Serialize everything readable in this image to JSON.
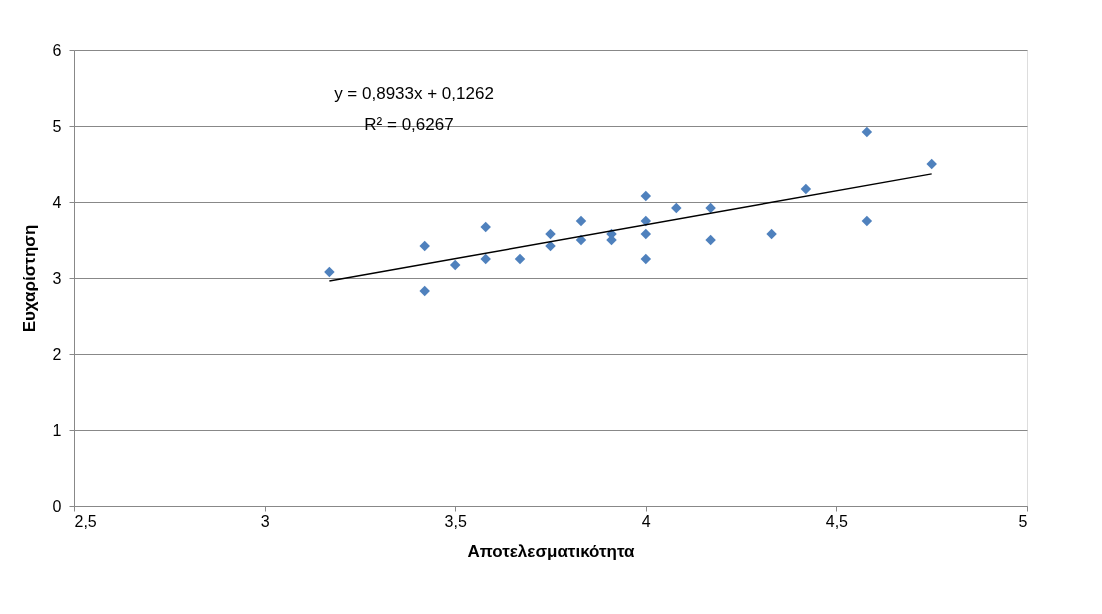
{
  "chart_data": {
    "type": "scatter",
    "xlabel": "Αποτελεσματικότητα",
    "ylabel": "Ευχαρίστηση",
    "annotations": [
      "y = 0,8933x + 0,1262",
      "R² = 0,6267"
    ],
    "xlim": [
      2.5,
      5
    ],
    "ylim": [
      0,
      6
    ],
    "xticks": [
      {
        "value": 2.5,
        "label": "2,5"
      },
      3,
      {
        "value": 3.5,
        "label": "3,5"
      },
      4,
      {
        "value": 4.5,
        "label": "4,5"
      },
      5
    ],
    "yticks": [
      0,
      1,
      2,
      3,
      4,
      5,
      6
    ],
    "grid": "y",
    "series": [
      {
        "marker": "diamond",
        "color": "#4f81bd",
        "x": [
          3.17,
          3.42,
          3.42,
          3.5,
          3.58,
          3.58,
          3.67,
          3.75,
          3.75,
          3.83,
          3.83,
          3.91,
          3.91,
          4.0,
          4.0,
          4.0,
          4.0,
          4.08,
          4.17,
          4.17,
          4.33,
          4.42,
          4.58,
          4.58,
          4.75
        ],
        "values": [
          3.08,
          3.42,
          2.83,
          3.17,
          3.67,
          3.25,
          3.25,
          3.58,
          3.42,
          3.75,
          3.5,
          3.58,
          3.5,
          4.08,
          3.75,
          3.58,
          3.25,
          3.92,
          3.92,
          3.5,
          3.58,
          4.17,
          4.92,
          3.75,
          4.5
        ]
      },
      {
        "type": "line",
        "color": "#000000",
        "x": [
          3.17,
          4.75
        ],
        "values": [
          2.96,
          4.37
        ]
      }
    ]
  }
}
